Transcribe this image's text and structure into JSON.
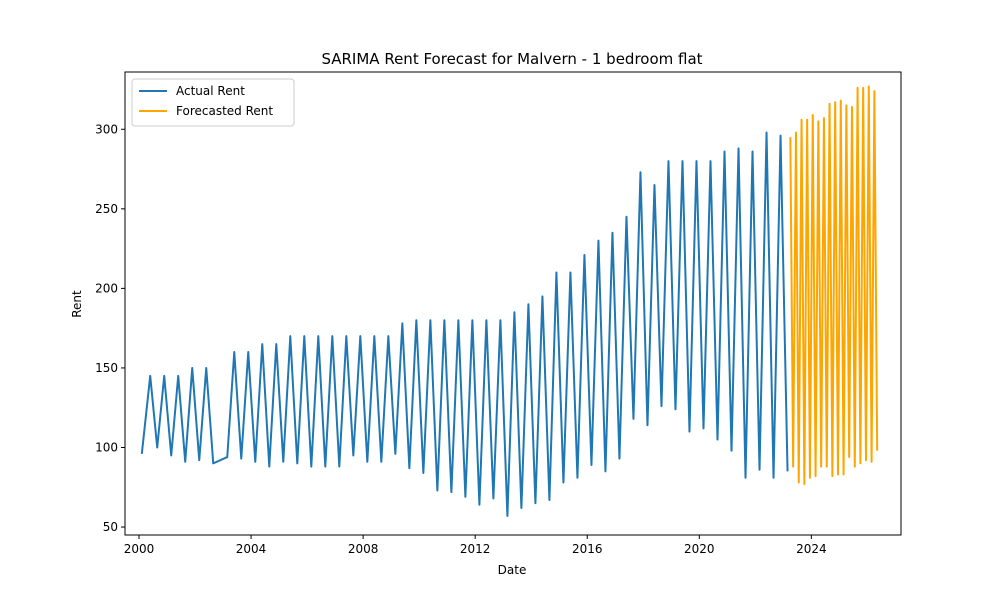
{
  "chart_data": {
    "type": "line",
    "title": "SARIMA Rent Forecast for Malvern - 1 bedroom flat",
    "xlabel": "Date",
    "ylabel": "Rent",
    "xlim": [
      1999.5,
      2027.2
    ],
    "ylim": [
      45,
      336
    ],
    "x_ticks": [
      2000,
      2004,
      2008,
      2012,
      2016,
      2020,
      2024
    ],
    "x_tick_labels": [
      "2000",
      "2004",
      "2008",
      "2012",
      "2016",
      "2020",
      "2024"
    ],
    "y_ticks": [
      50,
      100,
      150,
      200,
      250,
      300
    ],
    "y_tick_labels": [
      "50",
      "100",
      "150",
      "200",
      "250",
      "300"
    ],
    "grid": false,
    "legend_position": "top-left",
    "series": [
      {
        "name": "Actual Rent",
        "color": "#1f77b4",
        "x": [
          2000.1,
          2000.4,
          2000.65,
          2000.9,
          2001.15,
          2001.4,
          2001.65,
          2001.9,
          2002.15,
          2002.4,
          2002.65,
          2003.15,
          2003.4,
          2003.65,
          2003.9,
          2004.15,
          2004.4,
          2004.65,
          2004.9,
          2005.15,
          2005.4,
          2005.65,
          2005.9,
          2006.15,
          2006.4,
          2006.65,
          2006.9,
          2007.15,
          2007.4,
          2007.65,
          2007.9,
          2008.15,
          2008.4,
          2008.65,
          2008.9,
          2009.15,
          2009.4,
          2009.65,
          2009.9,
          2010.15,
          2010.4,
          2010.65,
          2010.9,
          2011.15,
          2011.4,
          2011.65,
          2011.9,
          2012.15,
          2012.4,
          2012.65,
          2012.9,
          2013.15,
          2013.4,
          2013.65,
          2013.9,
          2014.15,
          2014.4,
          2014.65,
          2014.9,
          2015.15,
          2015.4,
          2015.65,
          2015.9,
          2016.15,
          2016.4,
          2016.65,
          2016.9,
          2017.15,
          2017.4,
          2017.65,
          2017.9,
          2018.15,
          2018.4,
          2018.65,
          2018.9,
          2019.15,
          2019.4,
          2019.65,
          2019.9,
          2020.15,
          2020.4,
          2020.65,
          2020.9,
          2021.15,
          2021.4,
          2021.65,
          2021.9,
          2022.15,
          2022.4,
          2022.65,
          2022.9,
          2023.15
        ],
        "y": [
          96,
          145,
          100,
          145,
          95,
          145,
          91,
          150,
          92,
          150,
          90,
          94,
          160,
          93,
          160,
          91,
          165,
          88,
          165,
          91,
          170,
          90,
          170,
          88,
          170,
          88,
          170,
          88,
          170,
          95,
          170,
          91,
          170,
          91,
          170,
          96,
          178,
          87,
          180,
          84,
          180,
          73,
          180,
          72,
          180,
          69,
          180,
          64,
          180,
          68,
          180,
          57,
          185,
          62,
          190,
          65,
          195,
          67,
          210,
          78,
          210,
          81,
          221,
          89,
          230,
          85,
          235,
          93,
          245,
          118,
          273,
          114,
          265,
          126,
          280,
          124,
          280,
          110,
          280,
          112,
          280,
          105,
          286,
          98,
          288,
          81,
          286,
          86,
          298,
          81,
          296,
          85
        ]
      },
      {
        "name": "Forecasted Rent",
        "color": "#ffa500",
        "x": [
          2023.25,
          2023.35,
          2023.45,
          2023.55,
          2023.65,
          2023.75,
          2023.85,
          2023.95,
          2024.05,
          2024.15,
          2024.25,
          2024.35,
          2024.45,
          2024.55,
          2024.65,
          2024.75,
          2024.85,
          2024.95,
          2025.05,
          2025.15,
          2025.25,
          2025.35,
          2025.45,
          2025.55,
          2025.65,
          2025.75,
          2025.85,
          2025.95,
          2026.05,
          2026.15,
          2026.25,
          2026.35
        ],
        "y": [
          295,
          88,
          298,
          78,
          306,
          77,
          306,
          81,
          309,
          82,
          305,
          88,
          307,
          88,
          316,
          82,
          317,
          83,
          318,
          83,
          315,
          94,
          314,
          88,
          326,
          90,
          326,
          92,
          327,
          91,
          324,
          98
        ]
      }
    ]
  }
}
